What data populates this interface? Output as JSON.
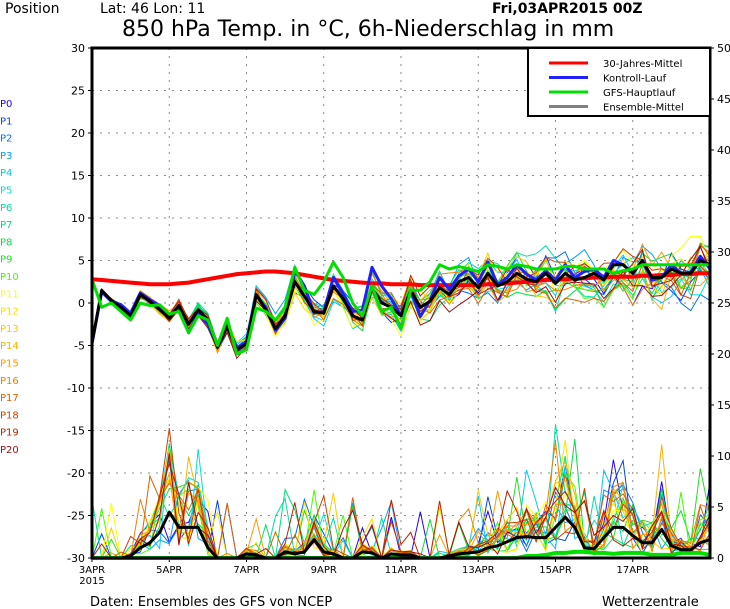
{
  "header": {
    "position_label": "Position",
    "latlon": "Lat: 46 Lon: 11",
    "run_time": "Fri,03APR2015 00Z",
    "title": "850 hPa Temp. in °C, 6h-Niederschlag in mm"
  },
  "footer": {
    "source": "Daten: Ensembles des GFS von NCEP",
    "brand": "Wetterzentrale"
  },
  "chart_data": {
    "type": "line",
    "title": "850 hPa Temp. in °C, 6h-Niederschlag in mm",
    "xlabel": "",
    "ylabel_left": "850 hPa Temp. (°C)",
    "ylabel_right": "6h-Niederschlag (mm)",
    "ylim_left": [
      -30,
      30
    ],
    "ylim_right": [
      0,
      50
    ],
    "yticks_left": [
      "30",
      "25",
      "20",
      "15",
      "10",
      "5",
      "0",
      "-5",
      "-10",
      "-15",
      "-20",
      "-25",
      "-30"
    ],
    "yticks_right": [
      "50",
      "45",
      "40",
      "35",
      "30",
      "25",
      "20",
      "15",
      "10",
      "5",
      "0"
    ],
    "xticks": [
      "3APR",
      "5APR",
      "7APR",
      "9APR",
      "11APR",
      "13APR",
      "15APR",
      "17APR"
    ],
    "xtick_year": "2015",
    "x_step_hours": 6,
    "x_days": 16,
    "grid": true,
    "legend_position": "top-right",
    "legend": [
      {
        "name": "30-Jahres-Mittel",
        "color": "#ff0000"
      },
      {
        "name": "Kontroll-Lauf",
        "color": "#2020ff"
      },
      {
        "name": "GFS-Hauptlauf",
        "color": "#00e000"
      },
      {
        "name": "Ensemble-Mittel",
        "color": "#808080"
      }
    ],
    "members": [
      {
        "name": "P0",
        "color": "#2000ff"
      },
      {
        "name": "P1",
        "color": "#0040ff"
      },
      {
        "name": "P2",
        "color": "#0070ff"
      },
      {
        "name": "P3",
        "color": "#00a0ff"
      },
      {
        "name": "P4",
        "color": "#00c8ff"
      },
      {
        "name": "P5",
        "color": "#00e0e0"
      },
      {
        "name": "P6",
        "color": "#00e0a0"
      },
      {
        "name": "P7",
        "color": "#00e070"
      },
      {
        "name": "P8",
        "color": "#00e040"
      },
      {
        "name": "P9",
        "color": "#20e020"
      },
      {
        "name": "P10",
        "color": "#40ff00"
      },
      {
        "name": "P11",
        "color": "#ffff00"
      },
      {
        "name": "P12",
        "color": "#ffe000"
      },
      {
        "name": "P13",
        "color": "#ffc800"
      },
      {
        "name": "P14",
        "color": "#ffb000"
      },
      {
        "name": "P15",
        "color": "#ff9800"
      },
      {
        "name": "P16",
        "color": "#f08000"
      },
      {
        "name": "P17",
        "color": "#e06000"
      },
      {
        "name": "P18",
        "color": "#d04000"
      },
      {
        "name": "P19",
        "color": "#c02000"
      },
      {
        "name": "P20",
        "color": "#a01010"
      }
    ],
    "climate_mean_temp": [
      2.8,
      2.7,
      2.6,
      2.5,
      2.4,
      2.3,
      2.2,
      2.2,
      2.2,
      2.3,
      2.4,
      2.6,
      2.8,
      3.0,
      3.2,
      3.4,
      3.5,
      3.6,
      3.7,
      3.7,
      3.6,
      3.5,
      3.3,
      3.1,
      2.9,
      2.7,
      2.6,
      2.5,
      2.4,
      2.3,
      2.3,
      2.2,
      2.2,
      2.2,
      2.1,
      2.1,
      2.1,
      2.1,
      2.1,
      2.1,
      2.1,
      2.2,
      2.2,
      2.3,
      2.4,
      2.5,
      2.6,
      2.7,
      2.8,
      2.8,
      2.9,
      2.9,
      3.0,
      3.0,
      3.1,
      3.1,
      3.1,
      3.2,
      3.2,
      3.3,
      3.3,
      3.4,
      3.4,
      3.5,
      3.5
    ],
    "control_temp": [
      -4.8,
      1.3,
      0.2,
      -0.2,
      -1.2,
      1.2,
      0.4,
      -0.3,
      -1.5,
      -0.4,
      -3.5,
      -1.2,
      -2.5,
      -5.1,
      -2.5,
      -5.3,
      -4.5,
      0.9,
      -0.5,
      -3.2,
      -1.8,
      3.8,
      2.0,
      -1.2,
      -1.0,
      3.0,
      1.1,
      -1.0,
      -0.8,
      4.2,
      2.0,
      0.5,
      -1.5,
      1.5,
      -1.6,
      0.3,
      3.0,
      1.6,
      3.2,
      4.0,
      2.5,
      4.8,
      2.2,
      3.0,
      4.5,
      3.4,
      2.7,
      3.8,
      2.7,
      4.5,
      3.0,
      3.7,
      4.0,
      3.0,
      5.0,
      4.5,
      3.5,
      5.0,
      2.7,
      3.0,
      4.5,
      3.5,
      3.6,
      5.5,
      4.0
    ],
    "main_run_temp": [
      2.8,
      -0.5,
      0.0,
      -1.0,
      -2.0,
      0.0,
      -0.3,
      -0.2,
      -1.3,
      -1.0,
      -3.5,
      -1.5,
      -2.0,
      -5.0,
      -1.8,
      -6.0,
      -5.5,
      -0.6,
      -1.0,
      -2.0,
      -0.5,
      4.2,
      1.5,
      1.0,
      2.5,
      4.8,
      3.0,
      0.0,
      -1.5,
      2.0,
      -1.0,
      -0.5,
      -3.0,
      1.5,
      1.5,
      2.5,
      4.5,
      4.0,
      4.3,
      4.0,
      3.7,
      4.5,
      4.3,
      4.0,
      4.5,
      4.3,
      4.0,
      4.0,
      4.0,
      4.3,
      4.3,
      4.0,
      4.0,
      4.0,
      3.5,
      3.8,
      4.0,
      4.5,
      4.5,
      4.5,
      4.5,
      4.5,
      4.5,
      4.5,
      4.5
    ],
    "ensemble_mean_temp": [
      -4.7,
      1.5,
      0.3,
      -0.5,
      -1.5,
      1.0,
      0.2,
      -0.8,
      -1.8,
      -0.3,
      -2.5,
      -0.8,
      -2.0,
      -5.2,
      -2.8,
      -5.5,
      -4.8,
      1.0,
      -0.8,
      -3.0,
      -1.5,
      2.5,
      0.8,
      -1.0,
      -1.2,
      2.0,
      0.5,
      -1.5,
      -2.0,
      1.8,
      0.0,
      -0.5,
      -1.5,
      1.5,
      -0.5,
      0.2,
      1.8,
      1.0,
      2.5,
      3.0,
      1.8,
      3.5,
      2.0,
      2.5,
      3.5,
      2.8,
      2.5,
      3.5,
      2.3,
      3.5,
      2.7,
      3.0,
      3.5,
      2.7,
      4.5,
      4.5,
      3.5,
      5.0,
      3.0,
      3.0,
      4.0,
      3.5,
      3.5,
      5.0,
      4.5
    ],
    "ensemble_mean_precip": [
      0,
      0,
      0,
      0,
      0.2,
      1,
      1.5,
      2.5,
      4.5,
      3,
      3,
      3,
      1,
      0,
      0,
      0,
      0.4,
      0.3,
      0,
      0,
      0.6,
      0.4,
      0.6,
      1.8,
      0.6,
      0.4,
      0,
      0,
      0.6,
      0.5,
      0,
      0.4,
      0.3,
      0.3,
      0,
      0,
      0,
      0.2,
      0.4,
      0.5,
      0.6,
      1.0,
      1.2,
      1.6,
      2.0,
      2.1,
      2.0,
      2.0,
      3.0,
      4.0,
      3.0,
      1.0,
      0.9,
      2.0,
      3.0,
      3.0,
      2.2,
      1.5,
      1.5,
      2.8,
      1.2,
      0.8,
      0.8,
      1.5,
      1.8
    ],
    "main_run_precip": [
      0,
      0,
      0,
      0,
      0,
      0,
      0,
      0,
      0,
      0,
      0,
      0,
      0,
      0,
      0,
      0,
      0,
      0,
      0,
      0,
      0,
      0,
      0,
      0,
      0,
      0,
      0,
      0,
      0,
      0,
      0,
      0,
      0,
      0,
      0,
      0,
      0,
      0,
      0,
      0,
      0,
      0,
      0,
      0,
      0,
      0.2,
      0.2,
      0.3,
      0.5,
      0.5,
      0.6,
      0.6,
      0.5,
      0.5,
      0.4,
      0.5,
      0.5,
      0.5,
      0.3,
      0.3,
      0.3,
      0.5,
      0.5,
      0.5,
      0.3
    ]
  }
}
